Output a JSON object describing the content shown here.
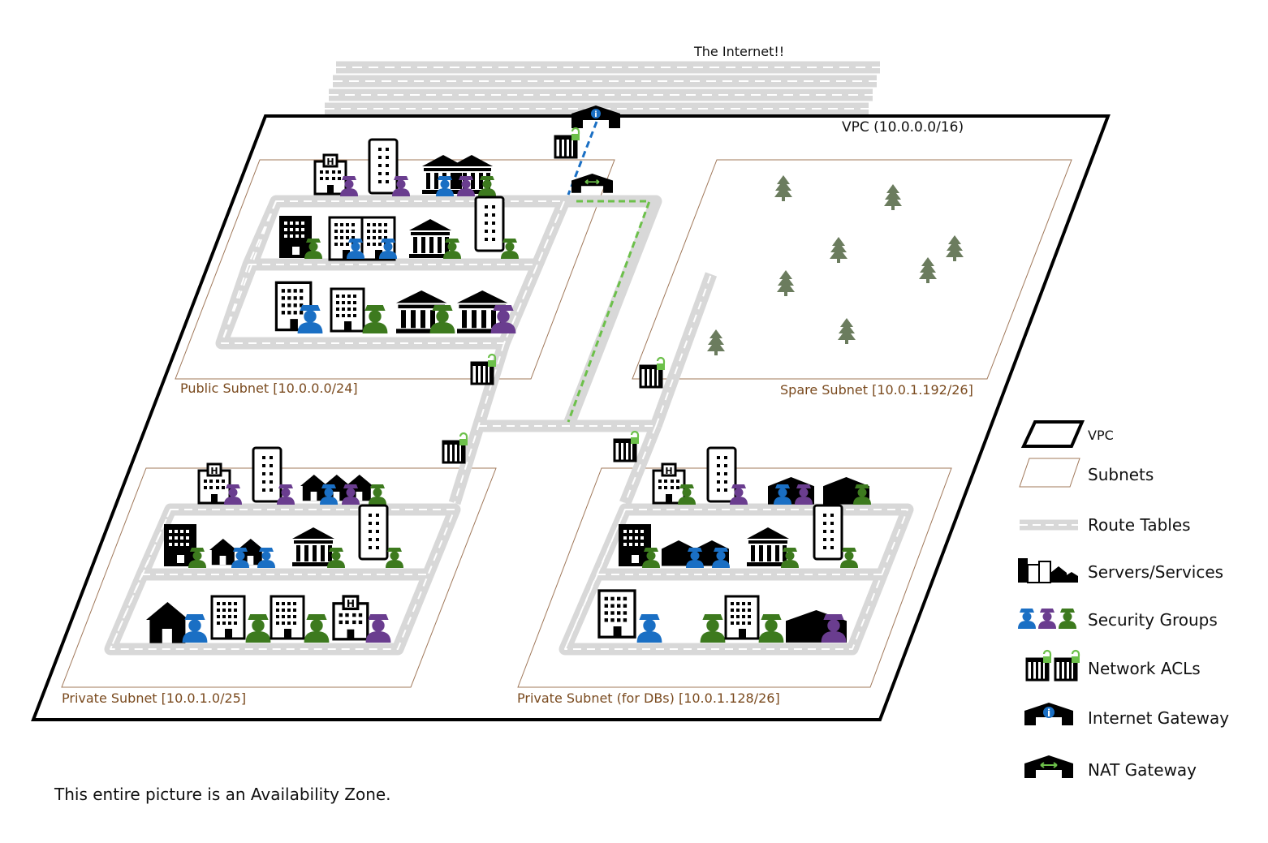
{
  "internet_label": "The Internet!!",
  "vpc_label": "VPC (10.0.0.0/16)",
  "subnets": {
    "public": "Public Subnet [10.0.0.0/24]",
    "spare": "Spare Subnet [10.0.1.192/26]",
    "private": "Private Subnet [10.0.1.0/25]",
    "private_db": "Private Subnet (for DBs) [10.0.1.128/26]"
  },
  "legend": {
    "vpc": "VPC",
    "subnets": "Subnets",
    "route_tables": "Route Tables",
    "servers_services": "Servers/Services",
    "security_groups": "Security Groups",
    "network_acls": "Network ACLs",
    "internet_gateway": "Internet Gateway",
    "nat_gateway": "NAT Gateway"
  },
  "footer": "This entire picture is an Availability Zone.",
  "colors": {
    "road": "#d8d8d8",
    "subnet_border": "#a0785a",
    "subnet_label": "#7a4a1e",
    "sg_blue": "#1a6fc4",
    "sg_purple": "#6a3d8f",
    "sg_green": "#3d7a1e",
    "acl_lock": "#6cc04a",
    "tree": "#6b7c5e",
    "igw_path": "#1a6fc4",
    "nat_path": "#6cc04a"
  }
}
